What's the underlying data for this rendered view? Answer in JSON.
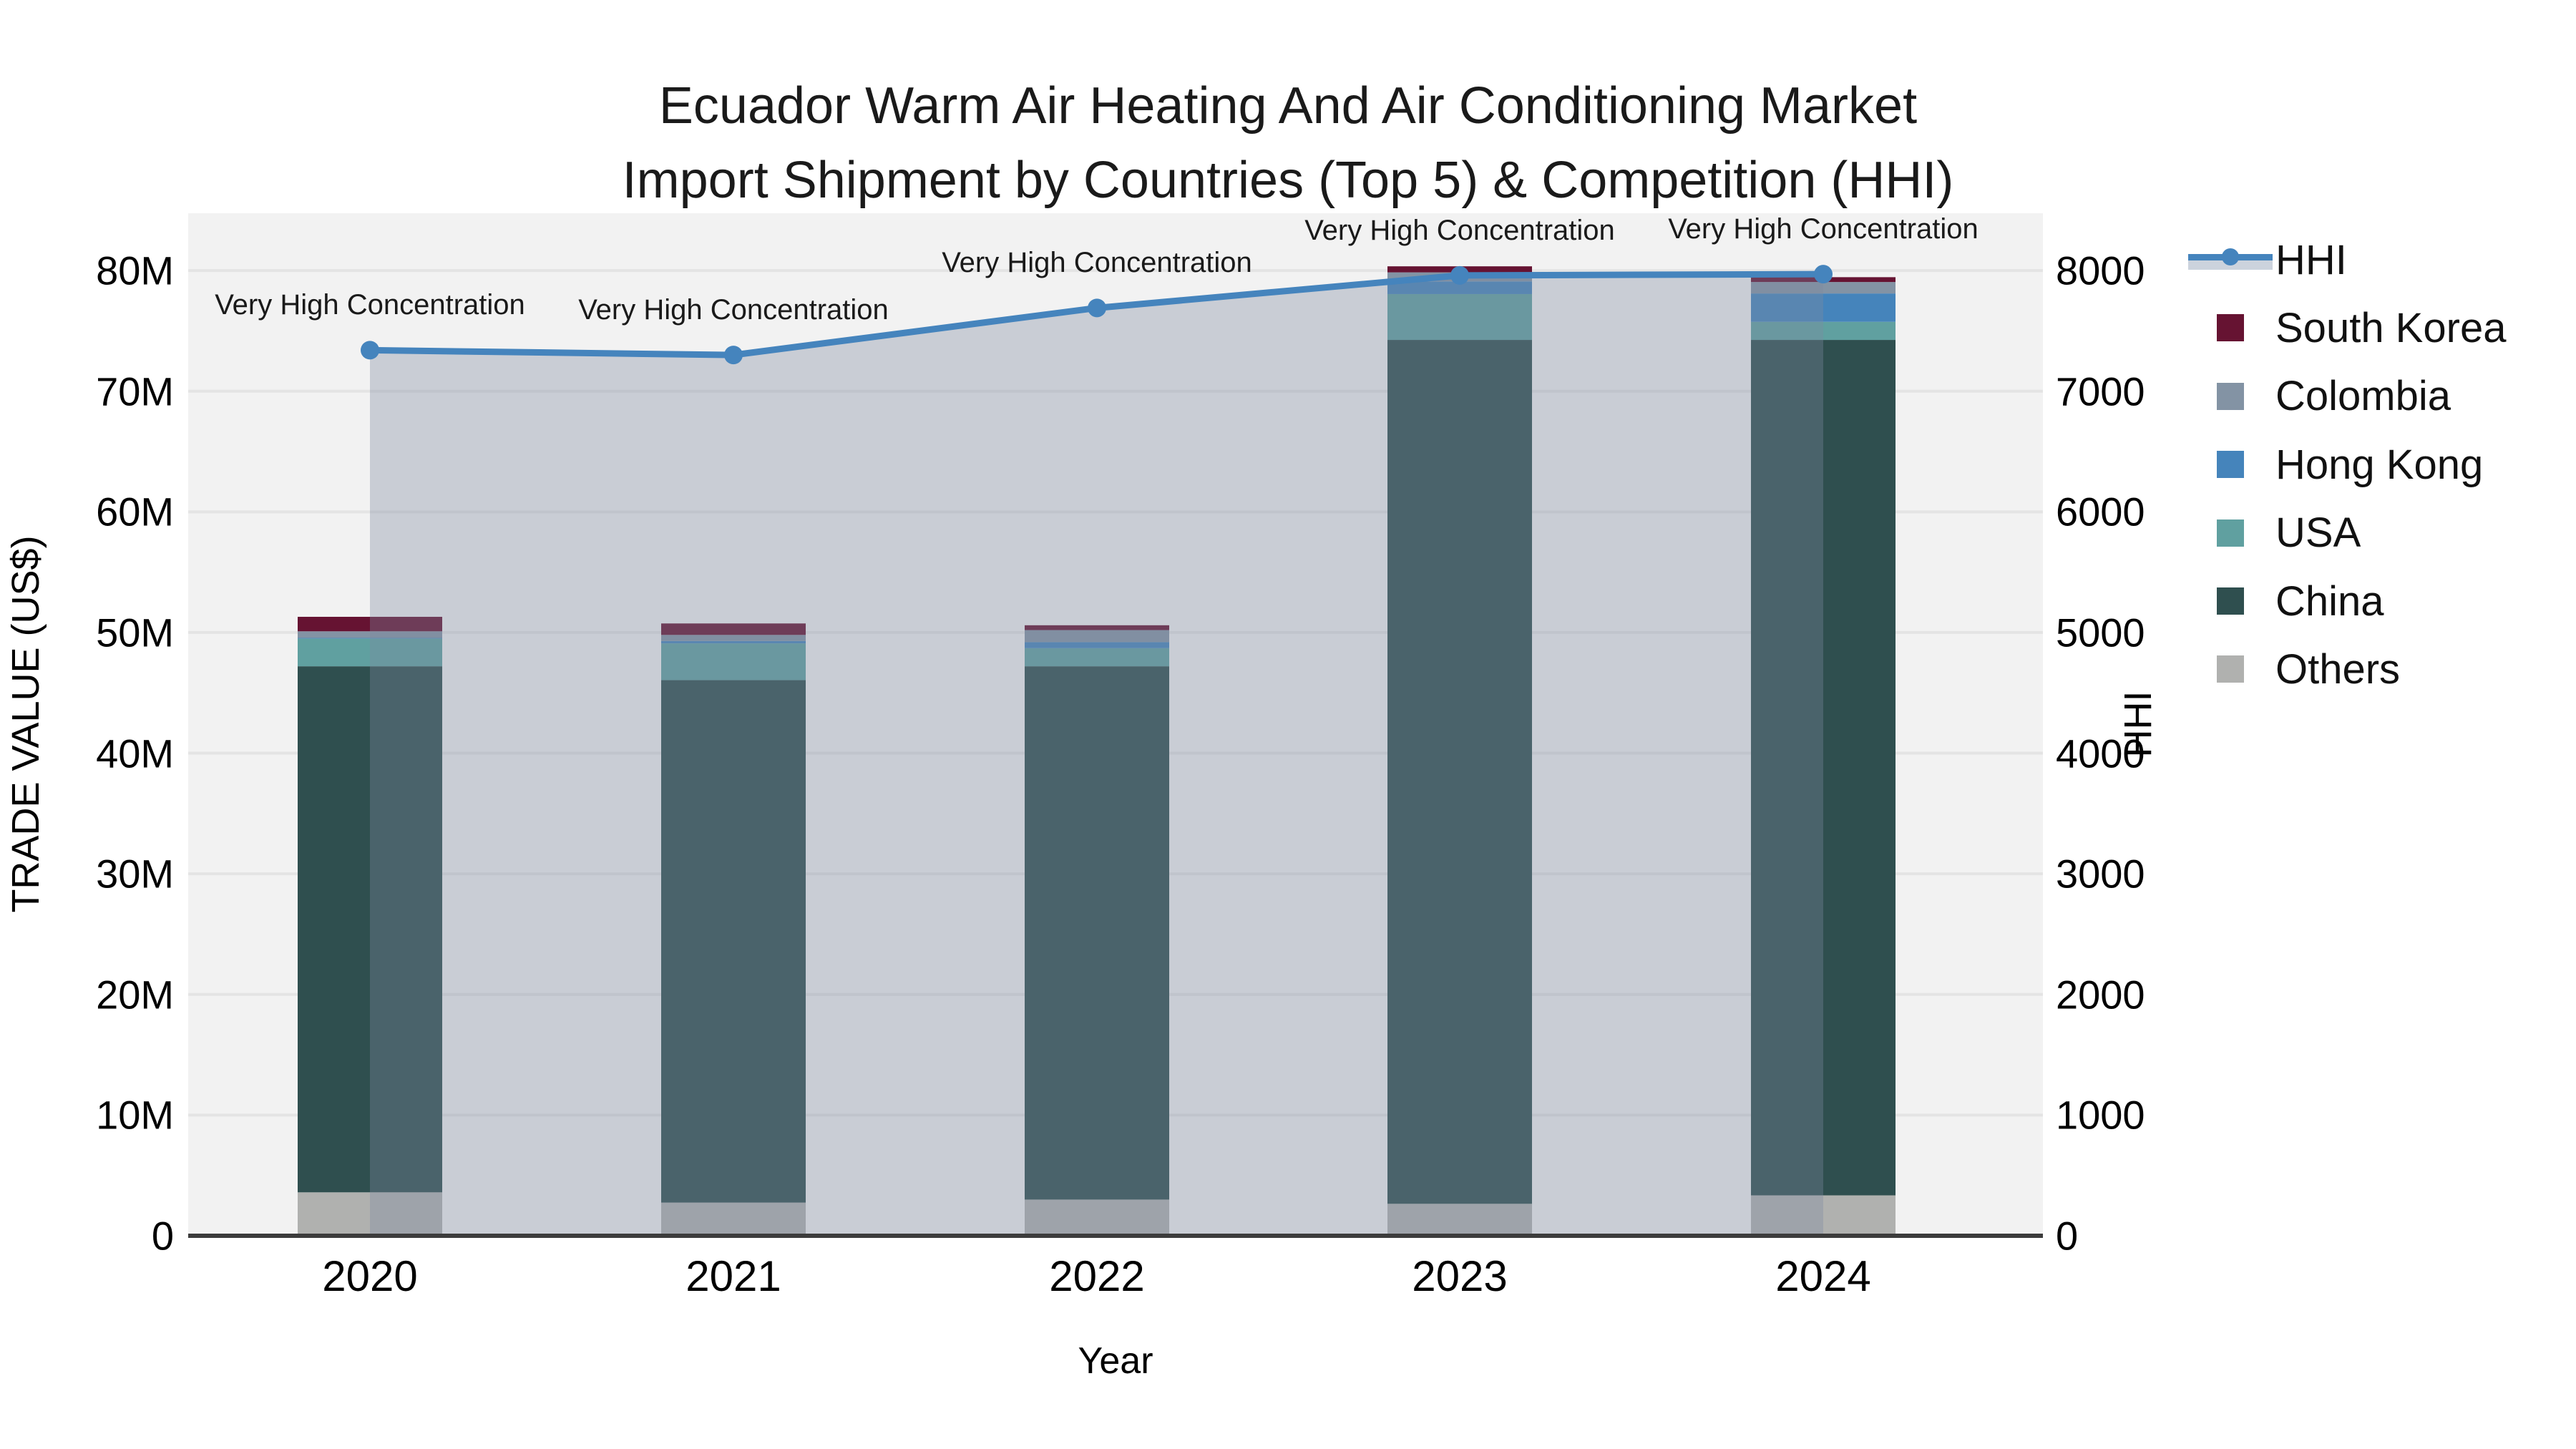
{
  "title": {
    "line1": "Ecuador Warm Air Heating And Air Conditioning Market",
    "line2": "Import Shipment by Countries (Top 5) & Competition (HHI)"
  },
  "axes": {
    "left": {
      "title": "TRADE VALUE (US$)",
      "ticks": [
        "0",
        "10M",
        "20M",
        "30M",
        "40M",
        "50M",
        "60M",
        "70M",
        "80M"
      ]
    },
    "right": {
      "title": "HHI",
      "ticks": [
        "0",
        "1000",
        "2000",
        "3000",
        "4000",
        "5000",
        "6000",
        "7000",
        "8000"
      ]
    },
    "x": {
      "title": "Year",
      "ticks": [
        "2020",
        "2021",
        "2022",
        "2023",
        "2024"
      ]
    }
  },
  "annotations": {
    "text": "Very High Concentration",
    "per_point": [
      "Very High Concentration",
      "Very High Concentration",
      "Very High Concentration",
      "Very High Concentration",
      "Very High Concentration"
    ]
  },
  "legend": {
    "items": [
      {
        "label": "HHI",
        "kind": "line",
        "color": "#4584bd"
      },
      {
        "label": "South Korea",
        "kind": "swatch",
        "color": "#661332"
      },
      {
        "label": "Colombia",
        "kind": "swatch",
        "color": "#8393a4"
      },
      {
        "label": "Hong Kong",
        "kind": "swatch",
        "color": "#4584bb"
      },
      {
        "label": "USA",
        "kind": "swatch",
        "color": "#60a0a0"
      },
      {
        "label": "China",
        "kind": "swatch",
        "color": "#2f4f4f"
      },
      {
        "label": "Others",
        "kind": "swatch",
        "color": "#b0b1af"
      }
    ]
  },
  "colors": {
    "plot_background": "#f2f2f2",
    "gridline": "#e4e4e4",
    "zero_line": "#3c3c3c",
    "hhi_line": "#4584bd",
    "hhi_area": "rgba(126,137,160,0.35)",
    "legend_band": "#ccd3dd"
  },
  "chart_data": {
    "type": "combo: stacked bar (left axis, trade value US$) + line (right axis, HHI)",
    "x": [
      "2020",
      "2021",
      "2022",
      "2023",
      "2024"
    ],
    "bar_value_unit": "millions of US$",
    "series": [
      {
        "name": "Others",
        "type": "bar",
        "color": "#b0b1af",
        "values": [
          3.6,
          2.75,
          3.0,
          2.65,
          3.35
        ]
      },
      {
        "name": "China",
        "type": "bar",
        "color": "#2f4f4f",
        "values": [
          43.6,
          43.3,
          44.2,
          71.6,
          70.9
        ]
      },
      {
        "name": "USA",
        "type": "bar",
        "color": "#60a0a0",
        "values": [
          2.3,
          3.05,
          1.5,
          3.8,
          1.5
        ]
      },
      {
        "name": "Hong Kong",
        "type": "bar",
        "color": "#4584bb",
        "values": [
          0.05,
          0.2,
          0.5,
          1.05,
          2.35
        ]
      },
      {
        "name": "Colombia",
        "type": "bar",
        "color": "#8393a4",
        "values": [
          0.55,
          0.5,
          1.0,
          0.75,
          0.95
        ]
      },
      {
        "name": "South Korea",
        "type": "bar",
        "color": "#661332",
        "values": [
          1.2,
          0.95,
          0.4,
          0.5,
          0.4
        ]
      }
    ],
    "bar_totals": [
      51.3,
      50.75,
      50.6,
      80.35,
      79.45
    ],
    "line": {
      "name": "HHI",
      "color": "#4584bd",
      "values": [
        7340,
        7300,
        7690,
        7960,
        7970
      ],
      "area_fill": true
    },
    "left_axis": {
      "label": "TRADE VALUE (US$)",
      "range_M": [
        0,
        84.75
      ],
      "tick_step_M": 10
    },
    "right_axis": {
      "label": "HHI",
      "range": [
        0,
        8475
      ],
      "tick_step": 1000
    },
    "xlabel": "Year",
    "legend_position": "right",
    "grid": true,
    "annotation_each_point": "Very High Concentration",
    "stack_order_bottom_to_top": [
      "Others",
      "China",
      "USA",
      "Hong Kong",
      "Colombia",
      "South Korea"
    ]
  }
}
